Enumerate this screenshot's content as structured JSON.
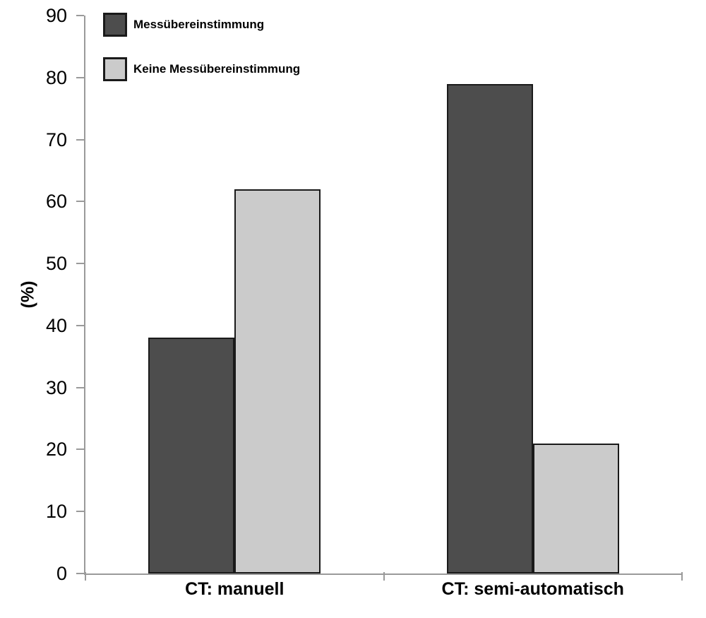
{
  "chart_data": {
    "type": "bar",
    "title": "",
    "xlabel": "",
    "ylabel": "(%)",
    "categories": [
      "CT: manuell",
      "CT: semi-automatisch"
    ],
    "series": [
      {
        "name": "Messübereinstimmung",
        "color": "#4d4d4d",
        "values": [
          38,
          79
        ]
      },
      {
        "name": "Keine Messübereinstimmung",
        "color": "#cbcbcb",
        "values": [
          62,
          21
        ]
      }
    ],
    "ylim": [
      0,
      90
    ],
    "yticks": [
      0,
      10,
      20,
      30,
      40,
      50,
      60,
      70,
      80,
      90
    ],
    "grid": false,
    "legend_position": "top-left",
    "bar_border_color": "#1a1a1a",
    "axis_color": "#9a9a9a",
    "text_color": "#000000",
    "background_color": "#ffffff"
  }
}
